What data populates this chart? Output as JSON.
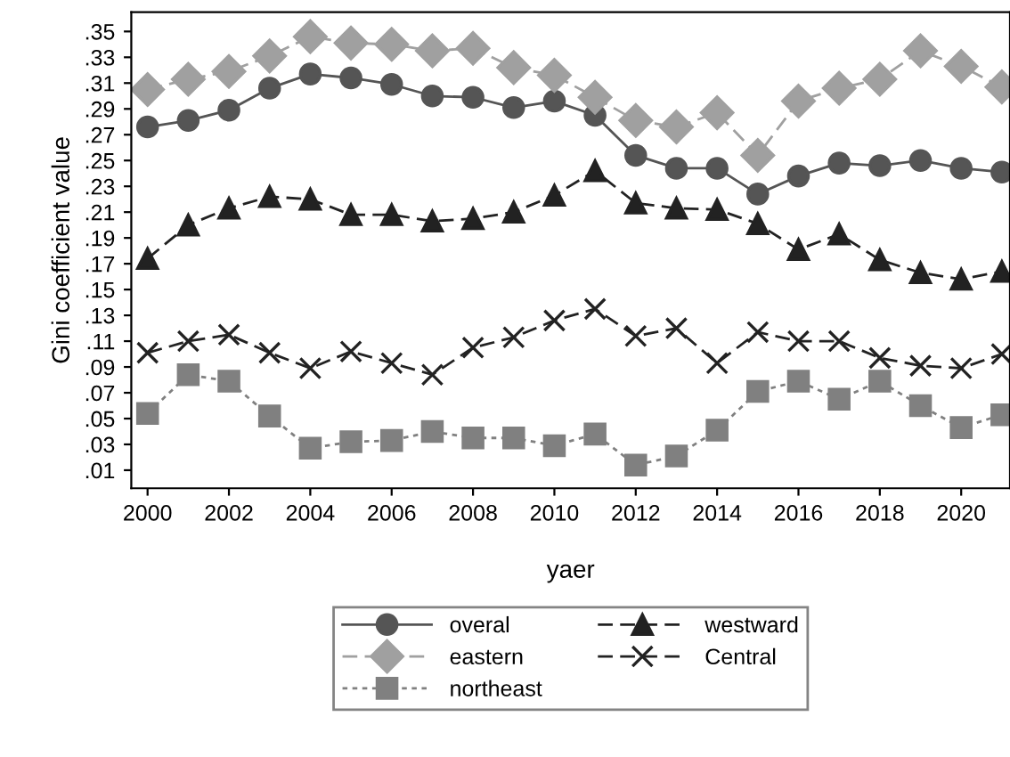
{
  "chart_data": {
    "type": "line",
    "xlabel": "yaer",
    "ylabel": "Gini coefficient value",
    "x": [
      2000,
      2001,
      2002,
      2003,
      2004,
      2005,
      2006,
      2007,
      2008,
      2009,
      2010,
      2011,
      2012,
      2013,
      2014,
      2015,
      2016,
      2017,
      2018,
      2019,
      2020,
      2021
    ],
    "series": [
      {
        "name": "overal",
        "color": "#555555",
        "marker": "circle",
        "line_style": "solid",
        "values": [
          0.276,
          0.281,
          0.289,
          0.306,
          0.317,
          0.314,
          0.309,
          0.3,
          0.299,
          0.291,
          0.296,
          0.285,
          0.254,
          0.244,
          0.244,
          0.224,
          0.238,
          0.248,
          0.246,
          0.25,
          0.244,
          0.241
        ]
      },
      {
        "name": "eastern",
        "color": "#a0a0a0",
        "marker": "diamond",
        "line_style": "dashed",
        "values": [
          0.305,
          0.313,
          0.319,
          0.331,
          0.346,
          0.341,
          0.34,
          0.335,
          0.337,
          0.322,
          0.316,
          0.299,
          0.281,
          0.276,
          0.287,
          0.254,
          0.296,
          0.306,
          0.313,
          0.335,
          0.323,
          0.307
        ]
      },
      {
        "name": "northeast",
        "color": "#808080",
        "marker": "square",
        "line_style": "dotted",
        "values": [
          0.054,
          0.084,
          0.079,
          0.052,
          0.027,
          0.032,
          0.033,
          0.04,
          0.035,
          0.035,
          0.029,
          0.038,
          0.014,
          0.021,
          0.041,
          0.071,
          0.079,
          0.065,
          0.079,
          0.06,
          0.043,
          0.053
        ]
      },
      {
        "name": "westward",
        "color": "#222222",
        "marker": "triangle",
        "line_style": "dashed",
        "values": [
          0.174,
          0.2,
          0.213,
          0.222,
          0.22,
          0.208,
          0.208,
          0.203,
          0.205,
          0.21,
          0.223,
          0.242,
          0.217,
          0.213,
          0.212,
          0.201,
          0.181,
          0.193,
          0.173,
          0.163,
          0.158,
          0.164
        ]
      },
      {
        "name": "Central",
        "color": "#222222",
        "marker": "cross",
        "line_style": "dashed",
        "values": [
          0.101,
          0.11,
          0.115,
          0.101,
          0.089,
          0.102,
          0.093,
          0.084,
          0.105,
          0.113,
          0.126,
          0.135,
          0.114,
          0.12,
          0.093,
          0.117,
          0.11,
          0.11,
          0.097,
          0.091,
          0.089,
          0.1
        ]
      }
    ],
    "xlim": [
      1999.6,
      2021.2
    ],
    "xticks": [
      2000,
      2002,
      2004,
      2006,
      2008,
      2010,
      2012,
      2014,
      2016,
      2018,
      2020
    ],
    "ylim": [
      -0.004,
      0.365
    ],
    "yticks": [
      {
        "value": 0.01,
        "label": ".01"
      },
      {
        "value": 0.03,
        "label": ".03"
      },
      {
        "value": 0.05,
        "label": ".05"
      },
      {
        "value": 0.07,
        "label": ".07"
      },
      {
        "value": 0.09,
        "label": ".09"
      },
      {
        "value": 0.11,
        "label": ".11"
      },
      {
        "value": 0.13,
        "label": ".13"
      },
      {
        "value": 0.15,
        "label": ".15"
      },
      {
        "value": 0.17,
        "label": ".17"
      },
      {
        "value": 0.19,
        "label": ".19"
      },
      {
        "value": 0.21,
        "label": ".21"
      },
      {
        "value": 0.23,
        "label": ".23"
      },
      {
        "value": 0.25,
        "label": ".25"
      },
      {
        "value": 0.27,
        "label": ".27"
      },
      {
        "value": 0.29,
        "label": ".29"
      },
      {
        "value": 0.31,
        "label": ".31"
      },
      {
        "value": 0.33,
        "label": ".33"
      },
      {
        "value": 0.35,
        "label": ".35"
      }
    ],
    "grid": false,
    "legend": "bottom"
  }
}
